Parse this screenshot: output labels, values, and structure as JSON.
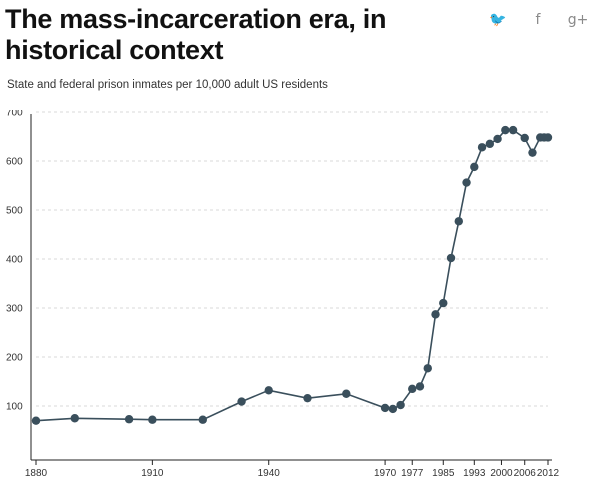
{
  "header": {
    "title": "The mass-incarceration era, in historical context",
    "subtitle": "State and federal prison inmates per 10,000 adult US residents"
  },
  "share": [
    {
      "icon": "twitter-icon",
      "glyph": "🐦"
    },
    {
      "icon": "facebook-icon",
      "glyph": "f"
    },
    {
      "icon": "google-plus-icon",
      "glyph": "g+"
    }
  ],
  "chart_data": {
    "type": "line",
    "title": "",
    "xlabel": "",
    "ylabel": "",
    "xlim": [
      1880,
      2012
    ],
    "ylim": [
      0,
      700
    ],
    "grid": true,
    "markers": true,
    "line_color": "#3a4f5c",
    "x": [
      1880,
      1890,
      1904,
      1910,
      1923,
      1933,
      1940,
      1950,
      1960,
      1970,
      1972,
      1974,
      1977,
      1979,
      1981,
      1983,
      1985,
      1987,
      1989,
      1991,
      1993,
      1995,
      1997,
      1999,
      2001,
      2003,
      2006,
      2008,
      2010,
      2011,
      2012
    ],
    "y": [
      70,
      75,
      73,
      72,
      72,
      109,
      132,
      116,
      125,
      96,
      94,
      102,
      135,
      140,
      177,
      287,
      310,
      402,
      477,
      556,
      588,
      628,
      635,
      645,
      663,
      663,
      647,
      617,
      648,
      648,
      648
    ],
    "x_ticks": [
      1880,
      1910,
      1940,
      1970,
      1977,
      1985,
      1993,
      2000,
      2006,
      2012
    ],
    "x_tick_labels": [
      "1880",
      "1910",
      "1940",
      "1970",
      "1977",
      "1985",
      "1993",
      "2000",
      "2006",
      "2012"
    ],
    "y_ticks": [
      100,
      200,
      300,
      400,
      500,
      600,
      700
    ],
    "y_tick_labels": [
      "100",
      "200",
      "300",
      "400",
      "500",
      "600",
      "700"
    ]
  }
}
